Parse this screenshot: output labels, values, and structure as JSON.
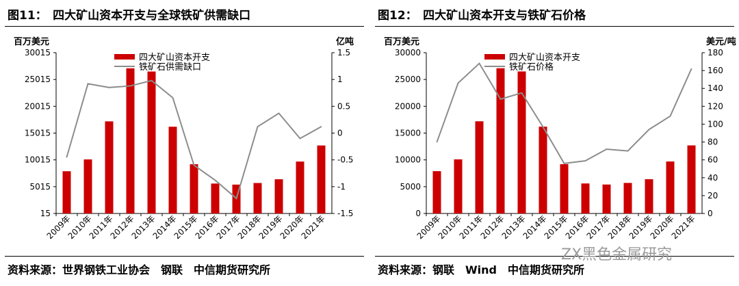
{
  "panels": [
    {
      "title": "图11：　四大矿山资本开支与全球铁矿供需缺口",
      "source": "资料来源：世界钢铁工业协会　钢联　中信期货研究所"
    },
    {
      "title": "图12：　四大矿山资本开支与铁矿石价格",
      "source": "资料来源：钢联　Wind　中信期货研究所"
    }
  ],
  "watermark": "ZX黑色金属研究",
  "colors": {
    "bar": "#cc0000",
    "line": "#8c8c8c"
  },
  "chart_data": [
    {
      "type": "bar",
      "title": "四大矿山资本开支与全球铁矿供需缺口",
      "categories": [
        "2009年",
        "2010年",
        "2011年",
        "2012年",
        "2013年",
        "2014年",
        "2015年",
        "2016年",
        "2017年",
        "2018年",
        "2019年",
        "2020年",
        "2021年"
      ],
      "y_label": "百万美元",
      "y2_label": "亿吨",
      "y_ticks": [
        "30015",
        "25015",
        "20015",
        "15015",
        "10015",
        "5015",
        "15"
      ],
      "y2_ticks": [
        "1.5",
        "1",
        "0.5",
        "0",
        "-0.5",
        "-1",
        "-1.5"
      ],
      "ylim": [
        15,
        30015
      ],
      "y2lim": [
        -1.5,
        1.5
      ],
      "series": [
        {
          "name": "四大矿山资本开支",
          "kind": "bar",
          "axis": "left",
          "values": [
            7900,
            10100,
            17200,
            27100,
            26500,
            16200,
            9200,
            5600,
            5400,
            5700,
            6400,
            9700,
            12700
          ]
        },
        {
          "name": "铁矿石供需缺口",
          "kind": "line",
          "axis": "right",
          "values": [
            -0.45,
            0.92,
            0.85,
            0.88,
            0.98,
            0.66,
            -0.6,
            -0.88,
            -1.22,
            0.12,
            0.37,
            -0.1,
            0.12
          ]
        }
      ]
    },
    {
      "type": "bar",
      "title": "四大矿山资本开支与铁矿石价格",
      "categories": [
        "2009年",
        "2010年",
        "2011年",
        "2012年",
        "2013年",
        "2014年",
        "2015年",
        "2016年",
        "2017年",
        "2018年",
        "2019年",
        "2020年",
        "2021年"
      ],
      "y_label": "百万美元",
      "y2_label": "美元/吨",
      "y_ticks": [
        "30000",
        "25000",
        "20000",
        "15000",
        "10000",
        "5000",
        "0"
      ],
      "y2_ticks": [
        "180",
        "160",
        "140",
        "120",
        "100",
        "80",
        "60",
        "40",
        "20",
        "0"
      ],
      "ylim": [
        0,
        30000
      ],
      "y2lim": [
        0,
        180
      ],
      "series": [
        {
          "name": "四大矿山资本开支",
          "kind": "bar",
          "axis": "left",
          "values": [
            7900,
            10100,
            17200,
            27100,
            26500,
            16200,
            9200,
            5600,
            5400,
            5700,
            6400,
            9700,
            12700
          ]
        },
        {
          "name": "铁矿石价格",
          "kind": "line",
          "axis": "right",
          "values": [
            80,
            146,
            168,
            128,
            135,
            97,
            56,
            59,
            72,
            70,
            94,
            109,
            162
          ]
        }
      ]
    }
  ]
}
